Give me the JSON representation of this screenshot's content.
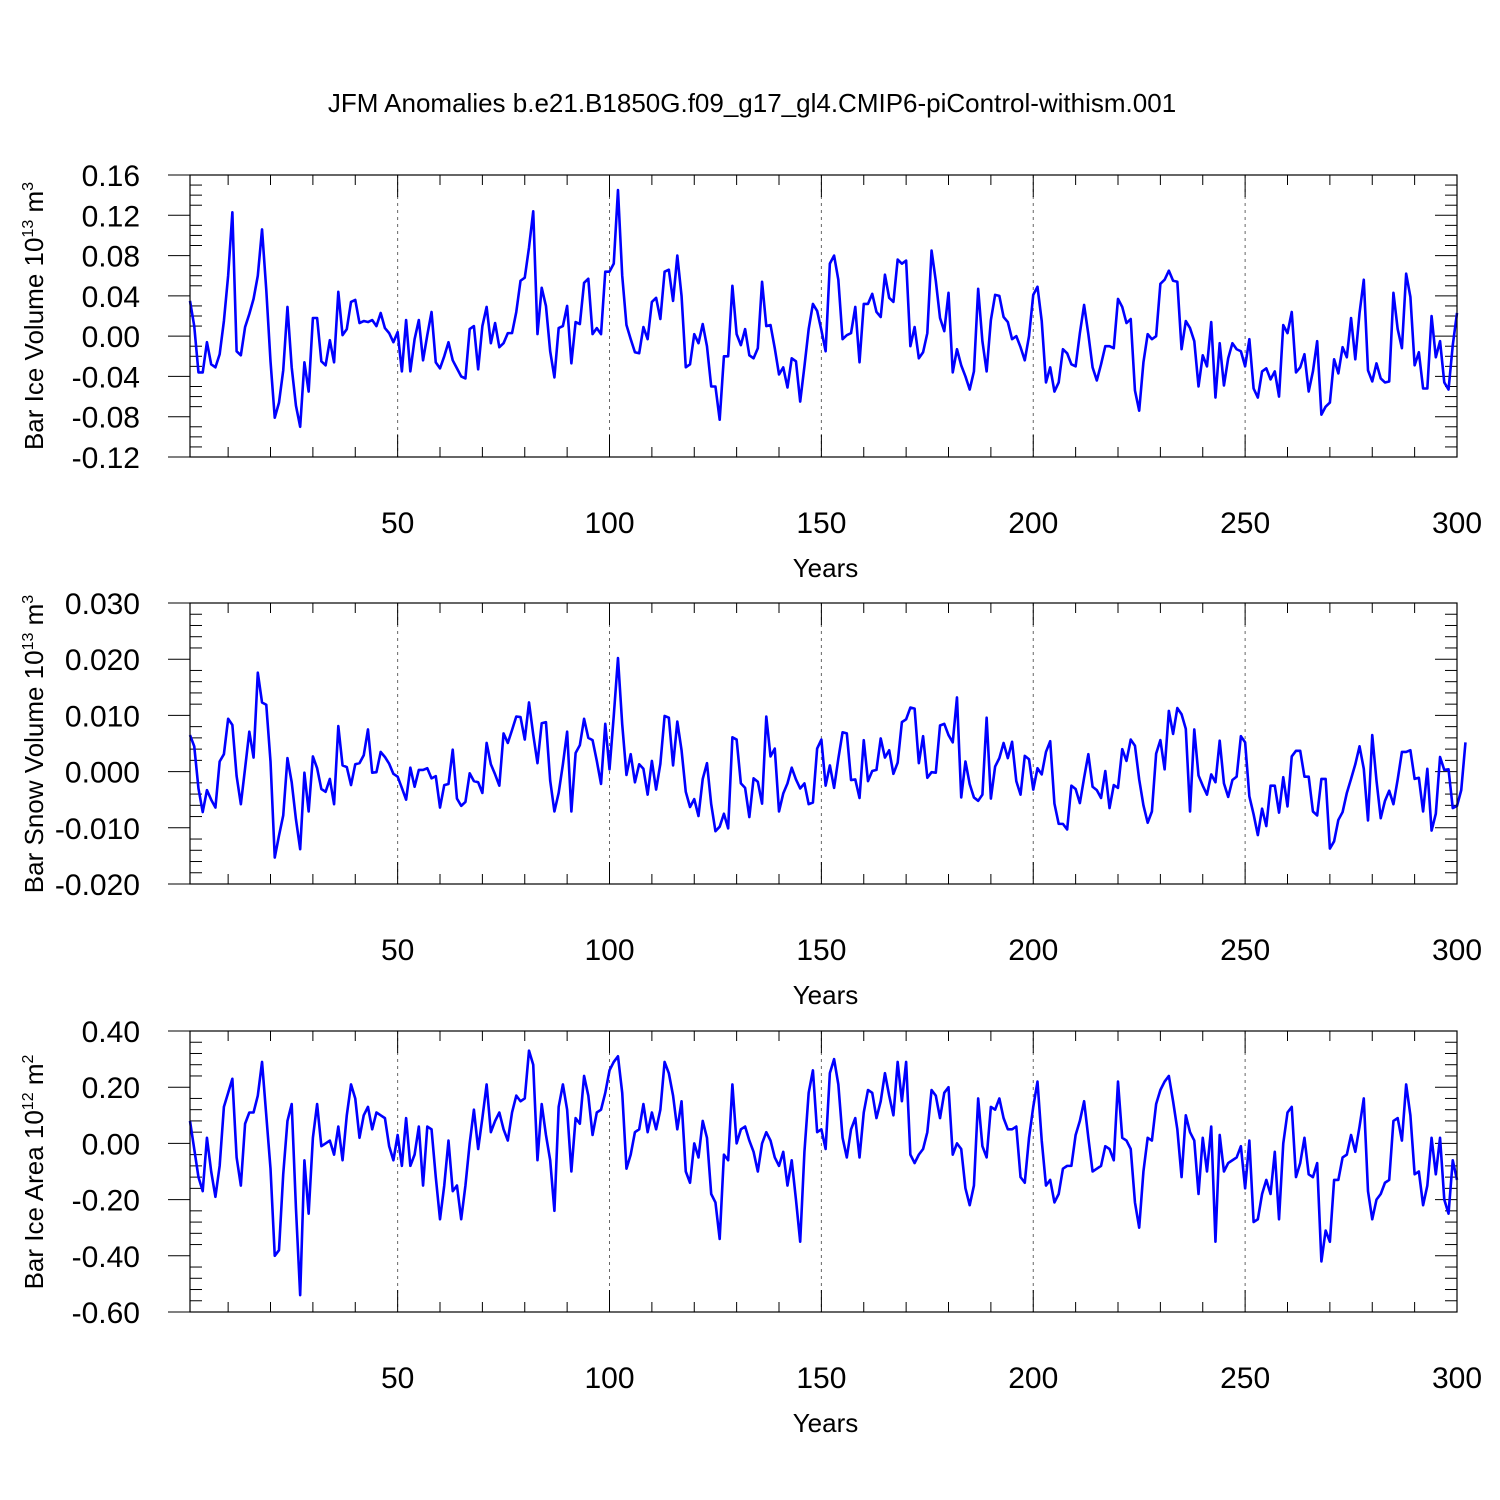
{
  "title": "JFM Anomalies b.e21.B1850G.f09_g17_gl4.CMIP6-piControl-withism.001",
  "chart_data": [
    {
      "type": "line",
      "ylabel": {
        "text": "Bar Ice Volume 10",
        "exponent": "13",
        "unit": "m",
        "unit_exponent": "3"
      },
      "xlabel": "Years",
      "xlim": [
        1,
        300
      ],
      "ylim": [
        -0.12,
        0.16
      ],
      "yticks": [
        "-0.12",
        "-0.08",
        "-0.04",
        "0.00",
        "0.04",
        "0.08",
        "0.12",
        "0.16"
      ],
      "xticks": [
        "50",
        "100",
        "150",
        "200",
        "250",
        "300"
      ],
      "line_color": "#0000ff",
      "series": [
        {
          "name": "Bar Ice Volume",
          "values": [
            0.035,
            0.01,
            -0.036,
            -0.036,
            -0.006,
            -0.028,
            -0.031,
            -0.018,
            0.015,
            0.06,
            0.123,
            -0.015,
            -0.019,
            0.009,
            0.022,
            0.037,
            0.06,
            0.106,
            0.046,
            -0.025,
            -0.081,
            -0.066,
            -0.034,
            0.029,
            -0.031,
            -0.069,
            -0.09,
            -0.026,
            -0.055,
            0.018,
            0.018,
            -0.025,
            -0.029,
            -0.004,
            -0.026,
            0.044,
            0.001,
            0.007,
            0.034,
            0.036,
            0.013,
            0.015,
            0.014,
            0.016,
            0.01,
            0.023,
            0.008,
            0.003,
            -0.006,
            0.004,
            -0.035,
            0.016,
            -0.035,
            -0.003,
            0.016,
            -0.024,
            0.001,
            0.024,
            -0.026,
            -0.032,
            -0.02,
            -0.006,
            -0.024,
            -0.032,
            -0.04,
            -0.042,
            0.007,
            0.01,
            -0.033,
            0.01,
            0.029,
            -0.007,
            0.013,
            -0.011,
            -0.007,
            0.003,
            0.003,
            0.024,
            0.055,
            0.058,
            0.088,
            0.124,
            0.002,
            0.048,
            0.03,
            -0.015,
            -0.041,
            0.008,
            0.01,
            0.03,
            -0.027,
            0.014,
            0.012,
            0.053,
            0.057,
            0.002,
            0.008,
            0.002,
            0.064,
            0.064,
            0.072,
            0.145,
            0.06,
            0.011,
            -0.003,
            -0.016,
            -0.017,
            0.009,
            -0.003,
            0.034,
            0.038,
            0.017,
            0.064,
            0.066,
            0.035,
            0.08,
            0.04,
            -0.031,
            -0.028,
            0.002,
            -0.007,
            0.012,
            -0.01,
            -0.05,
            -0.05,
            -0.083,
            -0.02,
            -0.02,
            0.05,
            0.002,
            -0.009,
            0.007,
            -0.019,
            -0.022,
            -0.012,
            0.054,
            0.01,
            0.011,
            -0.012,
            -0.038,
            -0.031,
            -0.051,
            -0.022,
            -0.025,
            -0.065,
            -0.03,
            0.007,
            0.032,
            0.025,
            0.006,
            -0.015,
            0.072,
            0.08,
            0.056,
            -0.003,
            0.001,
            0.003,
            0.029,
            -0.026,
            0.032,
            0.032,
            0.042,
            0.024,
            0.019,
            0.061,
            0.038,
            0.034,
            0.076,
            0.072,
            0.075,
            -0.01,
            0.009,
            -0.022,
            -0.016,
            0.003,
            0.085,
            0.055,
            0.018,
            0.005,
            0.043,
            -0.036,
            -0.013,
            -0.029,
            -0.04,
            -0.053,
            -0.035,
            0.047,
            -0.005,
            -0.035,
            0.016,
            0.041,
            0.04,
            0.019,
            0.014,
            -0.003,
            0.0,
            -0.011,
            -0.024,
            0.0,
            0.041,
            0.049,
            0.015,
            -0.046,
            -0.031,
            -0.055,
            -0.046,
            -0.013,
            -0.017,
            -0.028,
            -0.03,
            0.003,
            0.031,
            0.002,
            -0.031,
            -0.044,
            -0.028,
            -0.01,
            -0.01,
            -0.012,
            0.037,
            0.029,
            0.013,
            0.017,
            -0.054,
            -0.074,
            -0.026,
            0.002,
            -0.003,
            0.0,
            0.052,
            0.056,
            0.065,
            0.055,
            0.054,
            -0.013,
            0.015,
            0.008,
            -0.005,
            -0.05,
            -0.019,
            -0.03,
            0.014,
            -0.061,
            -0.007,
            -0.049,
            -0.022,
            -0.007,
            -0.013,
            -0.015,
            -0.03,
            -0.003,
            -0.052,
            -0.061,
            -0.035,
            -0.032,
            -0.043,
            -0.035,
            -0.06,
            0.011,
            0.003,
            0.024,
            -0.036,
            -0.031,
            -0.018,
            -0.055,
            -0.035,
            -0.005,
            -0.078,
            -0.07,
            -0.066,
            -0.023,
            -0.037,
            -0.011,
            -0.021,
            0.018,
            -0.023,
            0.023,
            0.056,
            -0.034,
            -0.045,
            -0.027,
            -0.042,
            -0.046,
            -0.045,
            0.043,
            0.007,
            -0.012,
            0.062,
            0.039,
            -0.029,
            -0.016,
            -0.052,
            -0.052,
            0.02,
            -0.021,
            -0.005,
            -0.046,
            -0.053,
            -0.009,
            0.023
          ]
        }
      ]
    },
    {
      "type": "line",
      "ylabel": {
        "text": "Bar Snow Volume 10",
        "exponent": "13",
        "unit": "m",
        "unit_exponent": "3"
      },
      "xlabel": "Years",
      "xlim": [
        1,
        300
      ],
      "ylim": [
        -0.02,
        0.03
      ],
      "yticks": [
        "-0.020",
        "-0.010",
        "0.000",
        "0.010",
        "0.020",
        "0.030"
      ],
      "xticks": [
        "50",
        "100",
        "150",
        "200",
        "250",
        "300"
      ],
      "line_color": "#0000ff",
      "series": [
        {
          "name": "Bar Snow Volume",
          "values": [
            0.0065,
            0.0045,
            -0.003,
            -0.0072,
            -0.0033,
            -0.005,
            -0.0064,
            0.0018,
            0.0031,
            0.0094,
            0.0083,
            -0.0008,
            -0.0058,
            0.0006,
            0.0071,
            0.0025,
            0.0176,
            0.0123,
            0.0119,
            0.0018,
            -0.0153,
            -0.0114,
            -0.0078,
            0.0024,
            -0.0019,
            -0.0085,
            -0.0138,
            -0.0002,
            -0.0071,
            0.0027,
            0.0006,
            -0.0031,
            -0.0036,
            -0.0013,
            -0.0058,
            0.0081,
            0.0011,
            0.0008,
            -0.0024,
            0.0013,
            0.0015,
            0.0029,
            0.0075,
            -0.0002,
            -0.0001,
            0.0035,
            0.0026,
            0.0014,
            -0.0004,
            -0.0009,
            -0.0029,
            -0.005,
            0.0007,
            -0.0027,
            0.0003,
            0.0003,
            0.0006,
            -0.0012,
            -0.0008,
            -0.0064,
            -0.0024,
            -0.0022,
            0.0039,
            -0.0048,
            -0.0061,
            -0.0054,
            -0.0003,
            -0.0017,
            -0.0019,
            -0.0038,
            0.0051,
            0.0013,
            -0.0005,
            -0.0025,
            0.0068,
            0.0051,
            0.0074,
            0.0098,
            0.0097,
            0.0057,
            0.0123,
            0.0066,
            0.0015,
            0.0086,
            0.0088,
            -0.0016,
            -0.0071,
            -0.0038,
            0.0013,
            0.0071,
            -0.0071,
            0.0033,
            0.0047,
            0.0094,
            0.006,
            0.0056,
            0.0019,
            -0.0022,
            0.0085,
            0.0004,
            0.0099,
            0.0202,
            0.0084,
            -0.0006,
            0.0031,
            -0.0019,
            0.0013,
            0.0005,
            -0.0041,
            0.0019,
            -0.0032,
            0.0014,
            0.0099,
            0.0096,
            0.0011,
            0.0089,
            0.0038,
            -0.0036,
            -0.0063,
            -0.0049,
            -0.0079,
            -0.0013,
            0.0015,
            -0.0058,
            -0.0106,
            -0.0098,
            -0.0075,
            -0.0101,
            0.0061,
            0.0057,
            -0.0021,
            -0.0029,
            -0.0081,
            -0.0012,
            -0.0018,
            -0.0057,
            0.0098,
            0.0027,
            0.0041,
            -0.0071,
            -0.0039,
            -0.0021,
            0.0007,
            -0.0014,
            -0.003,
            -0.0021,
            -0.0058,
            -0.0055,
            0.0041,
            0.0057,
            -0.0025,
            0.0011,
            -0.0029,
            0.0023,
            0.007,
            0.0068,
            -0.0015,
            -0.0014,
            -0.0047,
            0.0056,
            -0.0017,
            0.0001,
            0.0003,
            0.0059,
            0.0025,
            0.0038,
            -0.0004,
            0.0016,
            0.0088,
            0.0093,
            0.0114,
            0.0112,
            0.0015,
            0.0063,
            -0.0011,
            -0.0001,
            -0.0002,
            0.0082,
            0.0085,
            0.0065,
            0.0052,
            0.0132,
            -0.0046,
            0.0018,
            -0.0022,
            -0.0046,
            -0.0052,
            -0.0041,
            0.0096,
            -0.0048,
            0.0009,
            0.0024,
            0.0051,
            0.0024,
            0.0053,
            -0.0017,
            -0.0041,
            0.0028,
            0.0022,
            -0.0032,
            0.0006,
            -0.0005,
            0.0035,
            0.0054,
            -0.0057,
            -0.0093,
            -0.0093,
            -0.0103,
            -0.0025,
            -0.0031,
            -0.0056,
            -0.0011,
            0.0031,
            -0.0027,
            -0.0033,
            -0.0047,
            0.0001,
            -0.0065,
            -0.0024,
            -0.0029,
            0.004,
            0.0019,
            0.0057,
            0.0046,
            -0.0014,
            -0.006,
            -0.0091,
            -0.0071,
            0.0032,
            0.0056,
            0.0004,
            0.0108,
            0.0067,
            0.0113,
            0.0102,
            0.0076,
            -0.0071,
            0.0075,
            -0.0007,
            -0.0025,
            -0.0041,
            -0.0005,
            -0.0019,
            0.0055,
            -0.0021,
            -0.0045,
            -0.0015,
            -0.0009,
            0.0063,
            0.0052,
            -0.0044,
            -0.0076,
            -0.0113,
            -0.0066,
            -0.0097,
            -0.0025,
            -0.0025,
            -0.0073,
            -0.001,
            -0.0062,
            0.0027,
            0.0037,
            0.0037,
            -0.0009,
            -0.0009,
            -0.0071,
            -0.0078,
            -0.0013,
            -0.0013,
            -0.0137,
            -0.0124,
            -0.0086,
            -0.0072,
            -0.0038,
            -0.0013,
            0.0013,
            0.0045,
            0.0005,
            -0.0087,
            0.0065,
            -0.0016,
            -0.0083,
            -0.0052,
            -0.0034,
            -0.0058,
            -0.0014,
            0.0035,
            0.0035,
            0.0038,
            -0.0013,
            -0.0011,
            -0.0071,
            0.0005,
            -0.0105,
            -0.0075,
            0.0026,
            0.0003,
            0.0004,
            -0.0065,
            -0.0061,
            -0.0033,
            0.0052
          ]
        }
      ]
    },
    {
      "type": "line",
      "ylabel": {
        "text": "Bar Ice Area 10",
        "exponent": "12",
        "unit": "m",
        "unit_exponent": "2"
      },
      "xlabel": "Years",
      "xlim": [
        1,
        300
      ],
      "ylim": [
        -0.6,
        0.4
      ],
      "yticks": [
        "-0.60",
        "-0.40",
        "-0.20",
        "0.00",
        "0.20",
        "0.40"
      ],
      "xticks": [
        "50",
        "100",
        "150",
        "200",
        "250",
        "300"
      ],
      "line_color": "#0000ff",
      "series": [
        {
          "name": "Bar Ice Area",
          "values": [
            0.08,
            -0.02,
            -0.12,
            -0.17,
            0.02,
            -0.1,
            -0.19,
            -0.08,
            0.13,
            0.18,
            0.23,
            -0.05,
            -0.15,
            0.07,
            0.11,
            0.11,
            0.17,
            0.29,
            0.1,
            -0.09,
            -0.4,
            -0.38,
            -0.11,
            0.08,
            0.14,
            -0.23,
            -0.54,
            -0.06,
            -0.25,
            0.02,
            0.14,
            -0.01,
            0.0,
            0.01,
            -0.04,
            0.06,
            -0.06,
            0.1,
            0.21,
            0.16,
            0.02,
            0.1,
            0.13,
            0.05,
            0.11,
            0.1,
            0.09,
            -0.01,
            -0.06,
            0.03,
            -0.08,
            0.09,
            -0.08,
            -0.04,
            0.06,
            -0.15,
            0.06,
            0.05,
            -0.12,
            -0.27,
            -0.15,
            0.01,
            -0.17,
            -0.15,
            -0.27,
            -0.15,
            0.0,
            0.12,
            -0.02,
            0.09,
            0.21,
            0.04,
            0.08,
            0.11,
            0.05,
            0.01,
            0.11,
            0.17,
            0.15,
            0.16,
            0.33,
            0.28,
            -0.06,
            0.14,
            0.03,
            -0.06,
            -0.24,
            0.13,
            0.21,
            0.12,
            -0.1,
            0.09,
            0.07,
            0.24,
            0.17,
            0.03,
            0.11,
            0.12,
            0.18,
            0.26,
            0.29,
            0.31,
            0.18,
            -0.09,
            -0.04,
            0.04,
            0.05,
            0.14,
            0.04,
            0.11,
            0.05,
            0.12,
            0.29,
            0.25,
            0.17,
            0.05,
            0.15,
            -0.1,
            -0.14,
            0.0,
            -0.05,
            0.08,
            0.02,
            -0.18,
            -0.21,
            -0.34,
            -0.04,
            -0.06,
            0.21,
            0.0,
            0.05,
            0.06,
            0.01,
            -0.03,
            -0.1,
            0.0,
            0.04,
            0.01,
            -0.05,
            -0.08,
            -0.03,
            -0.15,
            -0.06,
            -0.2,
            -0.35,
            -0.03,
            0.18,
            0.26,
            0.04,
            0.05,
            -0.02,
            0.25,
            0.3,
            0.21,
            0.02,
            -0.05,
            0.05,
            0.09,
            -0.05,
            0.11,
            0.19,
            0.18,
            0.09,
            0.15,
            0.25,
            0.17,
            0.1,
            0.29,
            0.15,
            0.29,
            -0.04,
            -0.07,
            -0.04,
            -0.02,
            0.04,
            0.19,
            0.17,
            0.09,
            0.18,
            0.2,
            -0.04,
            0.0,
            -0.02,
            -0.16,
            -0.22,
            -0.15,
            0.16,
            -0.01,
            -0.05,
            0.13,
            0.12,
            0.16,
            0.09,
            0.05,
            0.05,
            0.06,
            -0.12,
            -0.14,
            0.02,
            0.13,
            0.22,
            0.01,
            -0.15,
            -0.13,
            -0.21,
            -0.18,
            -0.09,
            -0.08,
            -0.08,
            0.03,
            0.08,
            0.15,
            0.02,
            -0.1,
            -0.09,
            -0.08,
            -0.01,
            -0.02,
            -0.06,
            0.22,
            0.02,
            0.01,
            -0.02,
            -0.21,
            -0.3,
            -0.1,
            0.02,
            0.01,
            0.14,
            0.19,
            0.22,
            0.24,
            0.15,
            0.05,
            -0.12,
            0.1,
            0.04,
            0.01,
            -0.18,
            0.02,
            -0.1,
            0.06,
            -0.35,
            0.03,
            -0.1,
            -0.07,
            -0.06,
            -0.05,
            -0.01,
            -0.16,
            0.01,
            -0.28,
            -0.27,
            -0.18,
            -0.13,
            -0.18,
            -0.03,
            -0.27,
            0.0,
            0.11,
            0.13,
            -0.12,
            -0.07,
            0.02,
            -0.11,
            -0.12,
            -0.07,
            -0.42,
            -0.31,
            -0.35,
            -0.13,
            -0.13,
            -0.05,
            -0.04,
            0.03,
            -0.03,
            0.06,
            0.16,
            -0.17,
            -0.27,
            -0.2,
            -0.18,
            -0.14,
            -0.13,
            0.08,
            0.09,
            0.01,
            0.21,
            0.1,
            -0.11,
            -0.1,
            -0.22,
            -0.15,
            0.02,
            -0.11,
            0.02,
            -0.2,
            -0.25,
            -0.06,
            -0.13
          ]
        }
      ]
    }
  ]
}
